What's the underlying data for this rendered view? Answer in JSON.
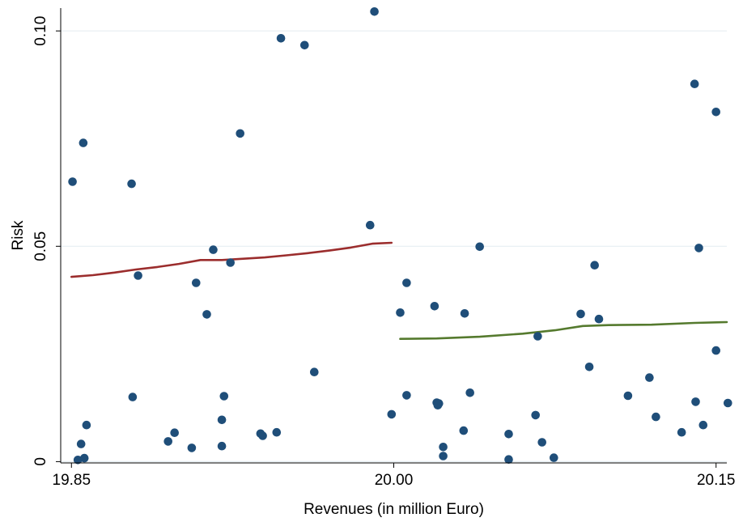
{
  "chart_data": {
    "type": "scatter",
    "title": "",
    "xlabel": "Revenues (in million Euro)",
    "ylabel": "Risk",
    "xlim": [
      19.845,
      20.155
    ],
    "ylim": [
      -0.0003,
      0.1053
    ],
    "xticks": [
      {
        "value": 19.85,
        "label": "19.85"
      },
      {
        "value": 20.0,
        "label": "20.00"
      },
      {
        "value": 20.15,
        "label": "20.15"
      }
    ],
    "yticks": [
      {
        "value": 0,
        "label": "0"
      },
      {
        "value": 0.05,
        "label": "0.05"
      },
      {
        "value": 0.1,
        "label": "0.10"
      }
    ],
    "grid": true,
    "legend": "none",
    "colors": {
      "points": "#1f4e79",
      "fit_left": "#9b2d2d",
      "fit_right": "#557a2e",
      "grid": "#e6eef2"
    },
    "series": [
      {
        "type": "scatter",
        "points": [
          [
            19.8505,
            0.065
          ],
          [
            19.853,
            0.0004
          ],
          [
            19.8545,
            0.0041
          ],
          [
            19.8555,
            0.074
          ],
          [
            19.856,
            0.0008
          ],
          [
            19.857,
            0.0085
          ],
          [
            19.878,
            0.0645
          ],
          [
            19.8785,
            0.015
          ],
          [
            19.881,
            0.0432
          ],
          [
            19.895,
            0.0047
          ],
          [
            19.898,
            0.0067
          ],
          [
            19.906,
            0.0032
          ],
          [
            19.908,
            0.0415
          ],
          [
            19.913,
            0.0342
          ],
          [
            19.916,
            0.0492
          ],
          [
            19.92,
            0.0097
          ],
          [
            19.92,
            0.0036
          ],
          [
            19.921,
            0.0152
          ],
          [
            19.924,
            0.0462
          ],
          [
            19.9285,
            0.0762
          ],
          [
            19.938,
            0.0065
          ],
          [
            19.939,
            0.006
          ],
          [
            19.9455,
            0.0068
          ],
          [
            19.9475,
            0.0983
          ],
          [
            19.9585,
            0.0967
          ],
          [
            19.963,
            0.0208
          ],
          [
            19.989,
            0.0549
          ],
          [
            19.991,
            0.1045
          ],
          [
            19.999,
            0.011
          ],
          [
            20.003,
            0.0346
          ],
          [
            20.006,
            0.0415
          ],
          [
            20.006,
            0.0154
          ],
          [
            20.019,
            0.0361
          ],
          [
            20.02,
            0.0137
          ],
          [
            20.0205,
            0.0131
          ],
          [
            20.021,
            0.0135
          ],
          [
            20.023,
            0.0034
          ],
          [
            20.023,
            0.0013
          ],
          [
            20.0325,
            0.0072
          ],
          [
            20.033,
            0.0344
          ],
          [
            20.0355,
            0.016
          ],
          [
            20.04,
            0.0499
          ],
          [
            20.0535,
            0.0064
          ],
          [
            20.0535,
            0.0005
          ],
          [
            20.066,
            0.0108
          ],
          [
            20.067,
            0.0291
          ],
          [
            20.069,
            0.0045
          ],
          [
            20.0745,
            0.0009
          ],
          [
            20.087,
            0.0343
          ],
          [
            20.091,
            0.022
          ],
          [
            20.0935,
            0.0456
          ],
          [
            20.0955,
            0.0331
          ],
          [
            20.109,
            0.0153
          ],
          [
            20.119,
            0.0195
          ],
          [
            20.122,
            0.0104
          ],
          [
            20.134,
            0.0068
          ],
          [
            20.14,
            0.0877
          ],
          [
            20.1405,
            0.0139
          ],
          [
            20.142,
            0.0496
          ],
          [
            20.144,
            0.0085
          ],
          [
            20.15,
            0.0812
          ],
          [
            20.15,
            0.0258
          ],
          [
            20.1555,
            0.0136
          ]
        ]
      },
      {
        "type": "line",
        "color": "fit_left",
        "points": [
          [
            19.85,
            0.0429
          ],
          [
            19.86,
            0.0433
          ],
          [
            19.87,
            0.0439
          ],
          [
            19.88,
            0.0446
          ],
          [
            19.89,
            0.0452
          ],
          [
            19.9,
            0.0459
          ],
          [
            19.91,
            0.0468
          ],
          [
            19.92,
            0.0468
          ],
          [
            19.93,
            0.0471
          ],
          [
            19.94,
            0.0474
          ],
          [
            19.95,
            0.0479
          ],
          [
            19.96,
            0.0484
          ],
          [
            19.97,
            0.049
          ],
          [
            19.98,
            0.0497
          ],
          [
            19.99,
            0.0506
          ],
          [
            19.999,
            0.0508
          ]
        ]
      },
      {
        "type": "line",
        "color": "fit_right",
        "points": [
          [
            20.003,
            0.0285
          ],
          [
            20.02,
            0.0286
          ],
          [
            20.04,
            0.029
          ],
          [
            20.06,
            0.0297
          ],
          [
            20.075,
            0.0305
          ],
          [
            20.088,
            0.0315
          ],
          [
            20.1,
            0.0317
          ],
          [
            20.12,
            0.0318
          ],
          [
            20.14,
            0.0322
          ],
          [
            20.155,
            0.0324
          ]
        ]
      }
    ]
  }
}
